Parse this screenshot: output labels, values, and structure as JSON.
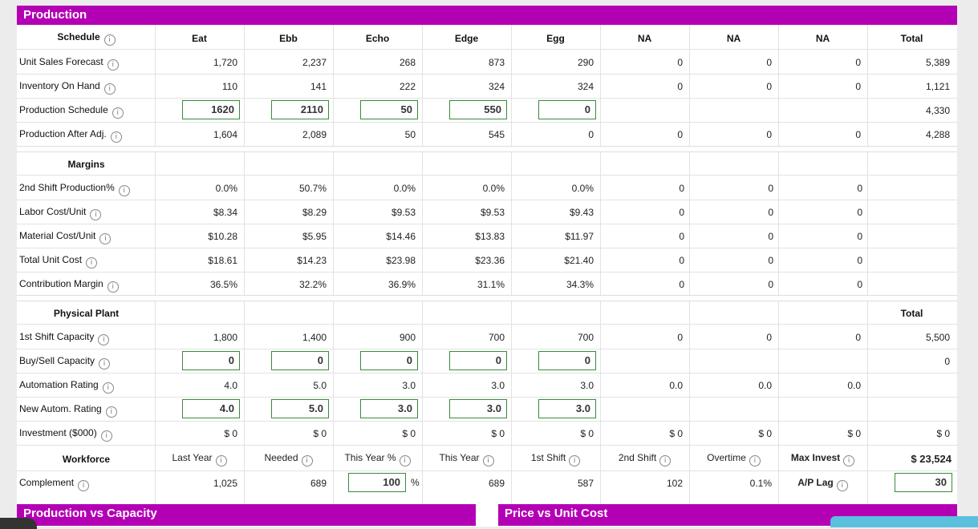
{
  "section_title": "Production",
  "columns": [
    "Eat",
    "Ebb",
    "Echo",
    "Edge",
    "Egg",
    "NA",
    "NA",
    "NA",
    "Total"
  ],
  "schedule": {
    "header": "Schedule",
    "rows": [
      {
        "label": "Unit Sales Forecast",
        "values": [
          "1,720",
          "2,237",
          "268",
          "873",
          "290",
          "0",
          "0",
          "0",
          "5,389"
        ]
      },
      {
        "label": "Inventory On Hand",
        "values": [
          "110",
          "141",
          "222",
          "324",
          "324",
          "0",
          "0",
          "0",
          "1,121"
        ]
      },
      {
        "label": "Production Schedule",
        "inputs": [
          "1620",
          "2110",
          "50",
          "550",
          "0"
        ],
        "total": "4,330"
      },
      {
        "label": "Production After Adj.",
        "values": [
          "1,604",
          "2,089",
          "50",
          "545",
          "0",
          "0",
          "0",
          "0",
          "4,288"
        ]
      }
    ]
  },
  "margins": {
    "header": "Margins",
    "rows": [
      {
        "label": "2nd Shift Production%",
        "values": [
          "0.0%",
          "50.7%",
          "0.0%",
          "0.0%",
          "0.0%",
          "0",
          "0",
          "0"
        ]
      },
      {
        "label": "Labor Cost/Unit",
        "values": [
          "$8.34",
          "$8.29",
          "$9.53",
          "$9.53",
          "$9.43",
          "0",
          "0",
          "0"
        ]
      },
      {
        "label": "Material Cost/Unit",
        "values": [
          "$10.28",
          "$5.95",
          "$14.46",
          "$13.83",
          "$11.97",
          "0",
          "0",
          "0"
        ]
      },
      {
        "label": "Total Unit Cost",
        "values": [
          "$18.61",
          "$14.23",
          "$23.98",
          "$23.36",
          "$21.40",
          "0",
          "0",
          "0"
        ]
      },
      {
        "label": "Contribution Margin",
        "values": [
          "36.5%",
          "32.2%",
          "36.9%",
          "31.1%",
          "34.3%",
          "0",
          "0",
          "0"
        ]
      }
    ]
  },
  "plant": {
    "header": "Physical Plant",
    "total_header": "Total",
    "rows": [
      {
        "label": "1st Shift Capacity",
        "values": [
          "1,800",
          "1,400",
          "900",
          "700",
          "700",
          "0",
          "0",
          "0",
          "5,500"
        ]
      },
      {
        "label": "Buy/Sell Capacity",
        "inputs": [
          "0",
          "0",
          "0",
          "0",
          "0"
        ],
        "total": "0"
      },
      {
        "label": "Automation Rating",
        "values": [
          "4.0",
          "5.0",
          "3.0",
          "3.0",
          "3.0",
          "0.0",
          "0.0",
          "0.0"
        ]
      },
      {
        "label": "New Autom. Rating",
        "inputs": [
          "4.0",
          "5.0",
          "3.0",
          "3.0",
          "3.0"
        ]
      },
      {
        "label": "Investment ($000)",
        "values": [
          "$ 0",
          "$ 0",
          "$ 0",
          "$ 0",
          "$ 0",
          "$ 0",
          "$ 0",
          "$ 0",
          "$ 0"
        ]
      }
    ]
  },
  "workforce": {
    "header": "Workforce",
    "col_labels": [
      "Last Year",
      "Needed",
      "This Year %",
      "This Year",
      "1st Shift",
      "2nd Shift",
      "Overtime",
      "Max Invest"
    ],
    "max_invest_value": "$ 23,524",
    "complement_label": "Complement",
    "complement_values": {
      "last_year": "1,025",
      "needed": "689",
      "this_year_pct": "100",
      "pct_sign": "%",
      "this_year": "689",
      "first_shift": "587",
      "second_shift": "102",
      "overtime": "0.1%"
    },
    "ap_lag_label": "A/P Lag",
    "ap_lag_value": "30"
  },
  "bottom_panels": {
    "left": "Production vs Capacity",
    "right": "Price vs Unit Cost"
  },
  "info_glyph": "i",
  "accent_color": "#b400b4",
  "input_border_color": "#3a8a3a"
}
